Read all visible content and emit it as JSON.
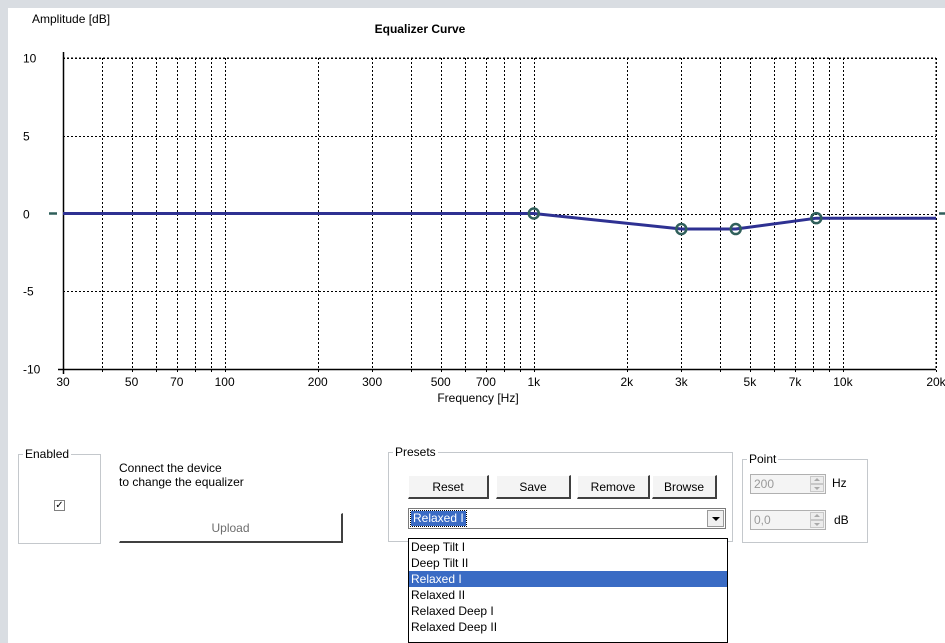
{
  "chart_data": {
    "type": "line",
    "title": "Equalizer Curve",
    "ylabel": "Amplitude [dB]",
    "xlabel": "Frequency [Hz]",
    "x_scale": "log",
    "xlim": [
      30,
      20000
    ],
    "ylim": [
      -10,
      10
    ],
    "grid": true,
    "y_ticks": [
      {
        "value": 10,
        "label": "10"
      },
      {
        "value": 5,
        "label": "5"
      },
      {
        "value": 0,
        "label": "0"
      },
      {
        "value": -5,
        "label": "-5"
      },
      {
        "value": -10,
        "label": "-10"
      }
    ],
    "x_ticks": [
      {
        "value": 30,
        "label": "30"
      },
      {
        "value": 50,
        "label": "50"
      },
      {
        "value": 70,
        "label": "70"
      },
      {
        "value": 100,
        "label": "100"
      },
      {
        "value": 200,
        "label": "200"
      },
      {
        "value": 300,
        "label": "300"
      },
      {
        "value": 500,
        "label": "500"
      },
      {
        "value": 700,
        "label": "700"
      },
      {
        "value": 1000,
        "label": "1k"
      },
      {
        "value": 2000,
        "label": "2k"
      },
      {
        "value": 3000,
        "label": "3k"
      },
      {
        "value": 5000,
        "label": "5k"
      },
      {
        "value": 7000,
        "label": "7k"
      },
      {
        "value": 10000,
        "label": "10k"
      },
      {
        "value": 20000,
        "label": "20k"
      }
    ],
    "x_minor_ticks": [
      40,
      60,
      80,
      90,
      400,
      600,
      800,
      900,
      4000,
      6000,
      8000,
      9000
    ],
    "curve": [
      {
        "x": 30,
        "y": 0
      },
      {
        "x": 1000,
        "y": 0
      },
      {
        "x": 3000,
        "y": -1
      },
      {
        "x": 4500,
        "y": -1
      },
      {
        "x": 8200,
        "y": -0.3
      },
      {
        "x": 20000,
        "y": -0.3
      }
    ],
    "control_points": [
      {
        "x": 1000,
        "y": 0
      },
      {
        "x": 3000,
        "y": -1
      },
      {
        "x": 4500,
        "y": -1
      },
      {
        "x": 8200,
        "y": -0.3
      }
    ],
    "curve_color": "#2e3192",
    "point_color": "#2f5f5a"
  },
  "enabled": {
    "legend": "Enabled",
    "checked": true,
    "check_mark": "✓",
    "message_line1": "Connect the device",
    "message_line2": "to change the equalizer",
    "upload_label": "Upload"
  },
  "presets": {
    "legend": "Presets",
    "reset_label": "Reset",
    "save_label": "Save",
    "remove_label": "Remove",
    "browse_label": "Browse",
    "selected": "Relaxed I",
    "options": [
      "Deep Tilt I",
      "Deep Tilt II",
      "Relaxed I",
      "Relaxed II",
      "Relaxed Deep I",
      "Relaxed Deep II"
    ],
    "active_index": 2
  },
  "point": {
    "legend": "Point",
    "hz_value": "200",
    "hz_unit": "Hz",
    "db_value": "0,0",
    "db_unit": "dB"
  }
}
